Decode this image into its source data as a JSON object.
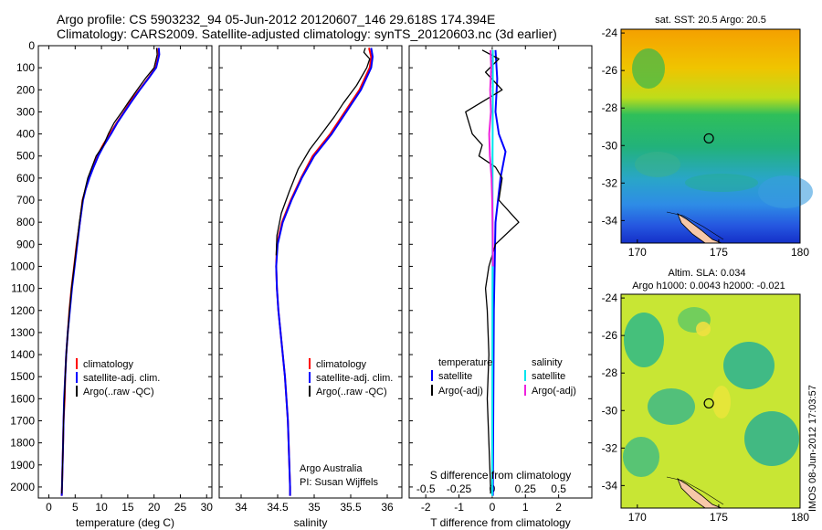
{
  "title": {
    "line1": "Argo profile: CS 5903232_94 05-Jun-2012 20120607_146 29.618S 174.394E",
    "line2": "Climatology: CARS2009. Satellite-adjusted climatology: synTS_20120603.nc (3d earlier)"
  },
  "side_text": "IMOS 08-Jun-2012 17:03:57",
  "colors": {
    "climatology": "#ff0000",
    "satellite": "#0000ff",
    "argo": "#000000",
    "salinity_satellite": "#00e5ee",
    "salinity_argo": "#ee22dd"
  },
  "chart_data": [
    {
      "type": "line",
      "xlabel": "temperature (deg C)",
      "xlim": [
        -2,
        31
      ],
      "ylim": [
        0,
        2050
      ],
      "y_reversed": true,
      "xticks": [
        0,
        5,
        10,
        15,
        20,
        25,
        30
      ],
      "yticks": [
        0,
        100,
        200,
        300,
        400,
        500,
        600,
        700,
        800,
        900,
        1000,
        1100,
        1200,
        1300,
        1400,
        1500,
        1600,
        1700,
        1800,
        1900,
        2000
      ],
      "legend": [
        "climatology",
        "satellite-adj. clim.",
        "Argo(..raw -QC)"
      ],
      "series": [
        {
          "name": "climatology",
          "color": "#ff0000",
          "points": [
            [
              20.8,
              10
            ],
            [
              20.9,
              40
            ],
            [
              20.7,
              60
            ],
            [
              20.3,
              100
            ],
            [
              18.8,
              150
            ],
            [
              17.2,
              200
            ],
            [
              15.6,
              250
            ],
            [
              14.3,
              300
            ],
            [
              12.9,
              350
            ],
            [
              11.6,
              400
            ],
            [
              10.3,
              450
            ],
            [
              9.2,
              500
            ],
            [
              8.3,
              550
            ],
            [
              7.6,
              600
            ],
            [
              7.0,
              650
            ],
            [
              6.4,
              700
            ],
            [
              5.9,
              800
            ],
            [
              5.3,
              900
            ],
            [
              4.8,
              1000
            ],
            [
              4.3,
              1100
            ],
            [
              3.9,
              1200
            ],
            [
              3.6,
              1300
            ],
            [
              3.3,
              1400
            ],
            [
              3.1,
              1500
            ],
            [
              3.0,
              1600
            ],
            [
              2.8,
              1700
            ],
            [
              2.7,
              1800
            ],
            [
              2.6,
              1900
            ],
            [
              2.5,
              2000
            ],
            [
              2.45,
              2040
            ]
          ]
        },
        {
          "name": "satellite-adj. clim.",
          "color": "#0000ff",
          "points": [
            [
              20.9,
              10
            ],
            [
              21.0,
              40
            ],
            [
              20.8,
              60
            ],
            [
              20.4,
              100
            ],
            [
              18.9,
              150
            ],
            [
              17.3,
              200
            ],
            [
              15.8,
              250
            ],
            [
              14.4,
              300
            ],
            [
              13.0,
              350
            ],
            [
              11.8,
              400
            ],
            [
              10.5,
              450
            ],
            [
              9.4,
              500
            ],
            [
              8.5,
              550
            ],
            [
              7.7,
              600
            ],
            [
              7.0,
              650
            ],
            [
              6.5,
              700
            ],
            [
              5.9,
              800
            ],
            [
              5.4,
              900
            ],
            [
              4.9,
              1000
            ],
            [
              4.4,
              1100
            ],
            [
              4.0,
              1200
            ],
            [
              3.6,
              1300
            ],
            [
              3.3,
              1400
            ],
            [
              3.1,
              1500
            ],
            [
              2.9,
              1600
            ],
            [
              2.8,
              1700
            ],
            [
              2.7,
              1800
            ],
            [
              2.6,
              1900
            ],
            [
              2.5,
              2000
            ],
            [
              2.45,
              2040
            ]
          ]
        },
        {
          "name": "Argo(..raw -QC)",
          "color": "#000000",
          "points": [
            [
              20.5,
              10
            ],
            [
              20.6,
              40
            ],
            [
              20.4,
              60
            ],
            [
              20.0,
              100
            ],
            [
              18.3,
              150
            ],
            [
              16.8,
              200
            ],
            [
              15.3,
              250
            ],
            [
              13.9,
              300
            ],
            [
              12.4,
              350
            ],
            [
              11.3,
              400
            ],
            [
              10.4,
              450
            ],
            [
              9.0,
              500
            ],
            [
              8.2,
              550
            ],
            [
              7.4,
              600
            ],
            [
              6.9,
              650
            ],
            [
              6.4,
              700
            ],
            [
              5.8,
              800
            ],
            [
              5.3,
              900
            ],
            [
              4.8,
              1000
            ],
            [
              4.3,
              1100
            ],
            [
              3.9,
              1200
            ],
            [
              3.6,
              1300
            ],
            [
              3.3,
              1400
            ],
            [
              3.1,
              1500
            ],
            [
              2.95,
              1600
            ],
            [
              2.8,
              1700
            ],
            [
              2.7,
              1800
            ],
            [
              2.6,
              1900
            ],
            [
              2.5,
              2000
            ],
            [
              2.45,
              2030
            ]
          ]
        }
      ]
    },
    {
      "type": "line",
      "xlabel": "salinity",
      "xlim": [
        33.7,
        36.2
      ],
      "ylim": [
        0,
        2050
      ],
      "y_reversed": true,
      "xticks": [
        34,
        34.5,
        35,
        35.5,
        36
      ],
      "legend": [
        "climatology",
        "satellite-adj. clim.",
        "Argo(..raw -QC)"
      ],
      "annotation": [
        "Argo Australia",
        "PI: Susan Wijffels"
      ],
      "series": [
        {
          "name": "climatology",
          "color": "#ff0000",
          "points": [
            [
              35.75,
              10
            ],
            [
              35.78,
              50
            ],
            [
              35.76,
              100
            ],
            [
              35.62,
              200
            ],
            [
              35.42,
              300
            ],
            [
              35.22,
              400
            ],
            [
              34.98,
              500
            ],
            [
              34.82,
              600
            ],
            [
              34.68,
              700
            ],
            [
              34.56,
              800
            ],
            [
              34.49,
              900
            ],
            [
              34.48,
              1000
            ],
            [
              34.49,
              1100
            ],
            [
              34.51,
              1200
            ],
            [
              34.54,
              1300
            ],
            [
              34.57,
              1400
            ],
            [
              34.6,
              1500
            ],
            [
              34.62,
              1600
            ],
            [
              34.64,
              1700
            ],
            [
              34.65,
              1800
            ],
            [
              34.66,
              1900
            ],
            [
              34.67,
              2000
            ],
            [
              34.67,
              2040
            ]
          ]
        },
        {
          "name": "satellite-adj. clim.",
          "color": "#0000ff",
          "points": [
            [
              35.78,
              10
            ],
            [
              35.8,
              50
            ],
            [
              35.78,
              100
            ],
            [
              35.64,
              200
            ],
            [
              35.44,
              300
            ],
            [
              35.24,
              400
            ],
            [
              35.0,
              500
            ],
            [
              34.83,
              600
            ],
            [
              34.69,
              700
            ],
            [
              34.57,
              800
            ],
            [
              34.5,
              900
            ],
            [
              34.48,
              1000
            ],
            [
              34.49,
              1100
            ],
            [
              34.51,
              1200
            ],
            [
              34.54,
              1300
            ],
            [
              34.57,
              1400
            ],
            [
              34.6,
              1500
            ],
            [
              34.62,
              1600
            ],
            [
              34.64,
              1700
            ],
            [
              34.65,
              1800
            ],
            [
              34.66,
              1900
            ],
            [
              34.67,
              2000
            ],
            [
              34.67,
              2040
            ]
          ]
        },
        {
          "name": "Argo(..raw -QC)",
          "color": "#000000",
          "points": [
            [
              35.7,
              10
            ],
            [
              35.68,
              30
            ],
            [
              35.76,
              60
            ],
            [
              35.72,
              100
            ],
            [
              35.58,
              180
            ],
            [
              35.4,
              260
            ],
            [
              35.28,
              320
            ],
            [
              35.1,
              400
            ],
            [
              34.94,
              470
            ],
            [
              34.78,
              560
            ],
            [
              34.66,
              660
            ],
            [
              34.55,
              760
            ],
            [
              34.49,
              860
            ],
            [
              34.48,
              950
            ]
          ]
        }
      ]
    },
    {
      "type": "line",
      "xlabel_bottom": "T difference from climatology",
      "xlabel_top": "S difference from climatology",
      "xlim": [
        -2.5,
        3
      ],
      "ylim": [
        0,
        2050
      ],
      "y_reversed": true,
      "xticks": [
        -2,
        -1,
        0,
        1,
        2
      ],
      "xticks_top": [
        -0.5,
        -0.25,
        0,
        0.25,
        0.5
      ],
      "legend_titles": [
        "temperature",
        "salinity"
      ],
      "legend": [
        "satellite",
        "Argo(-adj)",
        "satellite",
        "Argo(-adj)"
      ],
      "series": [
        {
          "name": "temperature satellite",
          "color": "#0000ff",
          "points": [
            [
              0.1,
              20
            ],
            [
              0.15,
              150
            ],
            [
              0.1,
              300
            ],
            [
              0.2,
              400
            ],
            [
              0.4,
              480
            ],
            [
              0.25,
              600
            ],
            [
              0.1,
              800
            ],
            [
              0.05,
              1200
            ],
            [
              0.02,
              2040
            ]
          ]
        },
        {
          "name": "temperature Argo(-adj)",
          "color": "#000000",
          "points": [
            [
              -0.3,
              20
            ],
            [
              0.2,
              60
            ],
            [
              -0.2,
              120
            ],
            [
              0.3,
              200
            ],
            [
              -0.8,
              300
            ],
            [
              -0.6,
              400
            ],
            [
              -0.3,
              450
            ],
            [
              -0.4,
              500
            ],
            [
              0.1,
              550
            ],
            [
              0.3,
              600
            ],
            [
              0.2,
              700
            ],
            [
              0.8,
              800
            ],
            [
              0.1,
              900
            ],
            [
              -0.1,
              1000
            ],
            [
              -0.2,
              1100
            ],
            [
              -0.15,
              1200
            ],
            [
              -0.1,
              1400
            ],
            [
              -0.15,
              1600
            ],
            [
              -0.1,
              1800
            ],
            [
              -0.05,
              2000
            ],
            [
              -0.05,
              2030
            ]
          ]
        },
        {
          "name": "salinity satellite",
          "color": "#00e5ee",
          "points": [
            [
              0.02,
              20
            ],
            [
              0.02,
              200
            ],
            [
              0.01,
              500
            ],
            [
              0.01,
              1000
            ],
            [
              0.0,
              2040
            ]
          ]
        },
        {
          "name": "salinity Argo(-adj)",
          "color": "#ee22dd",
          "points": [
            [
              -0.05,
              20
            ],
            [
              -0.03,
              100
            ],
            [
              -0.06,
              200
            ],
            [
              -0.04,
              300
            ],
            [
              -0.09,
              400
            ],
            [
              -0.07,
              500
            ],
            [
              -0.02,
              600
            ],
            [
              0.0,
              700
            ],
            [
              0.01,
              800
            ],
            [
              0.02,
              900
            ],
            [
              0.02,
              1000
            ]
          ]
        }
      ]
    },
    {
      "type": "heatmap",
      "title": "sat. SST: 20.5 Argo: 20.5",
      "xlim": [
        169,
        180
      ],
      "ylim": [
        -35.2,
        -23.8
      ],
      "xticks": [
        170,
        175,
        180
      ],
      "yticks": [
        -24,
        -26,
        -28,
        -30,
        -32,
        -34
      ],
      "marker": [
        174.394,
        -29.618
      ]
    },
    {
      "type": "heatmap",
      "title_lines": [
        "Altim. SLA: 0.034",
        "Argo h1000: 0.0043 h2000: -0.021"
      ],
      "xlim": [
        169,
        180
      ],
      "ylim": [
        -35.2,
        -23.8
      ],
      "xticks": [
        170,
        175,
        180
      ],
      "yticks": [
        -24,
        -26,
        -28,
        -30,
        -32,
        -34
      ],
      "marker": [
        174.394,
        -29.618
      ]
    }
  ]
}
